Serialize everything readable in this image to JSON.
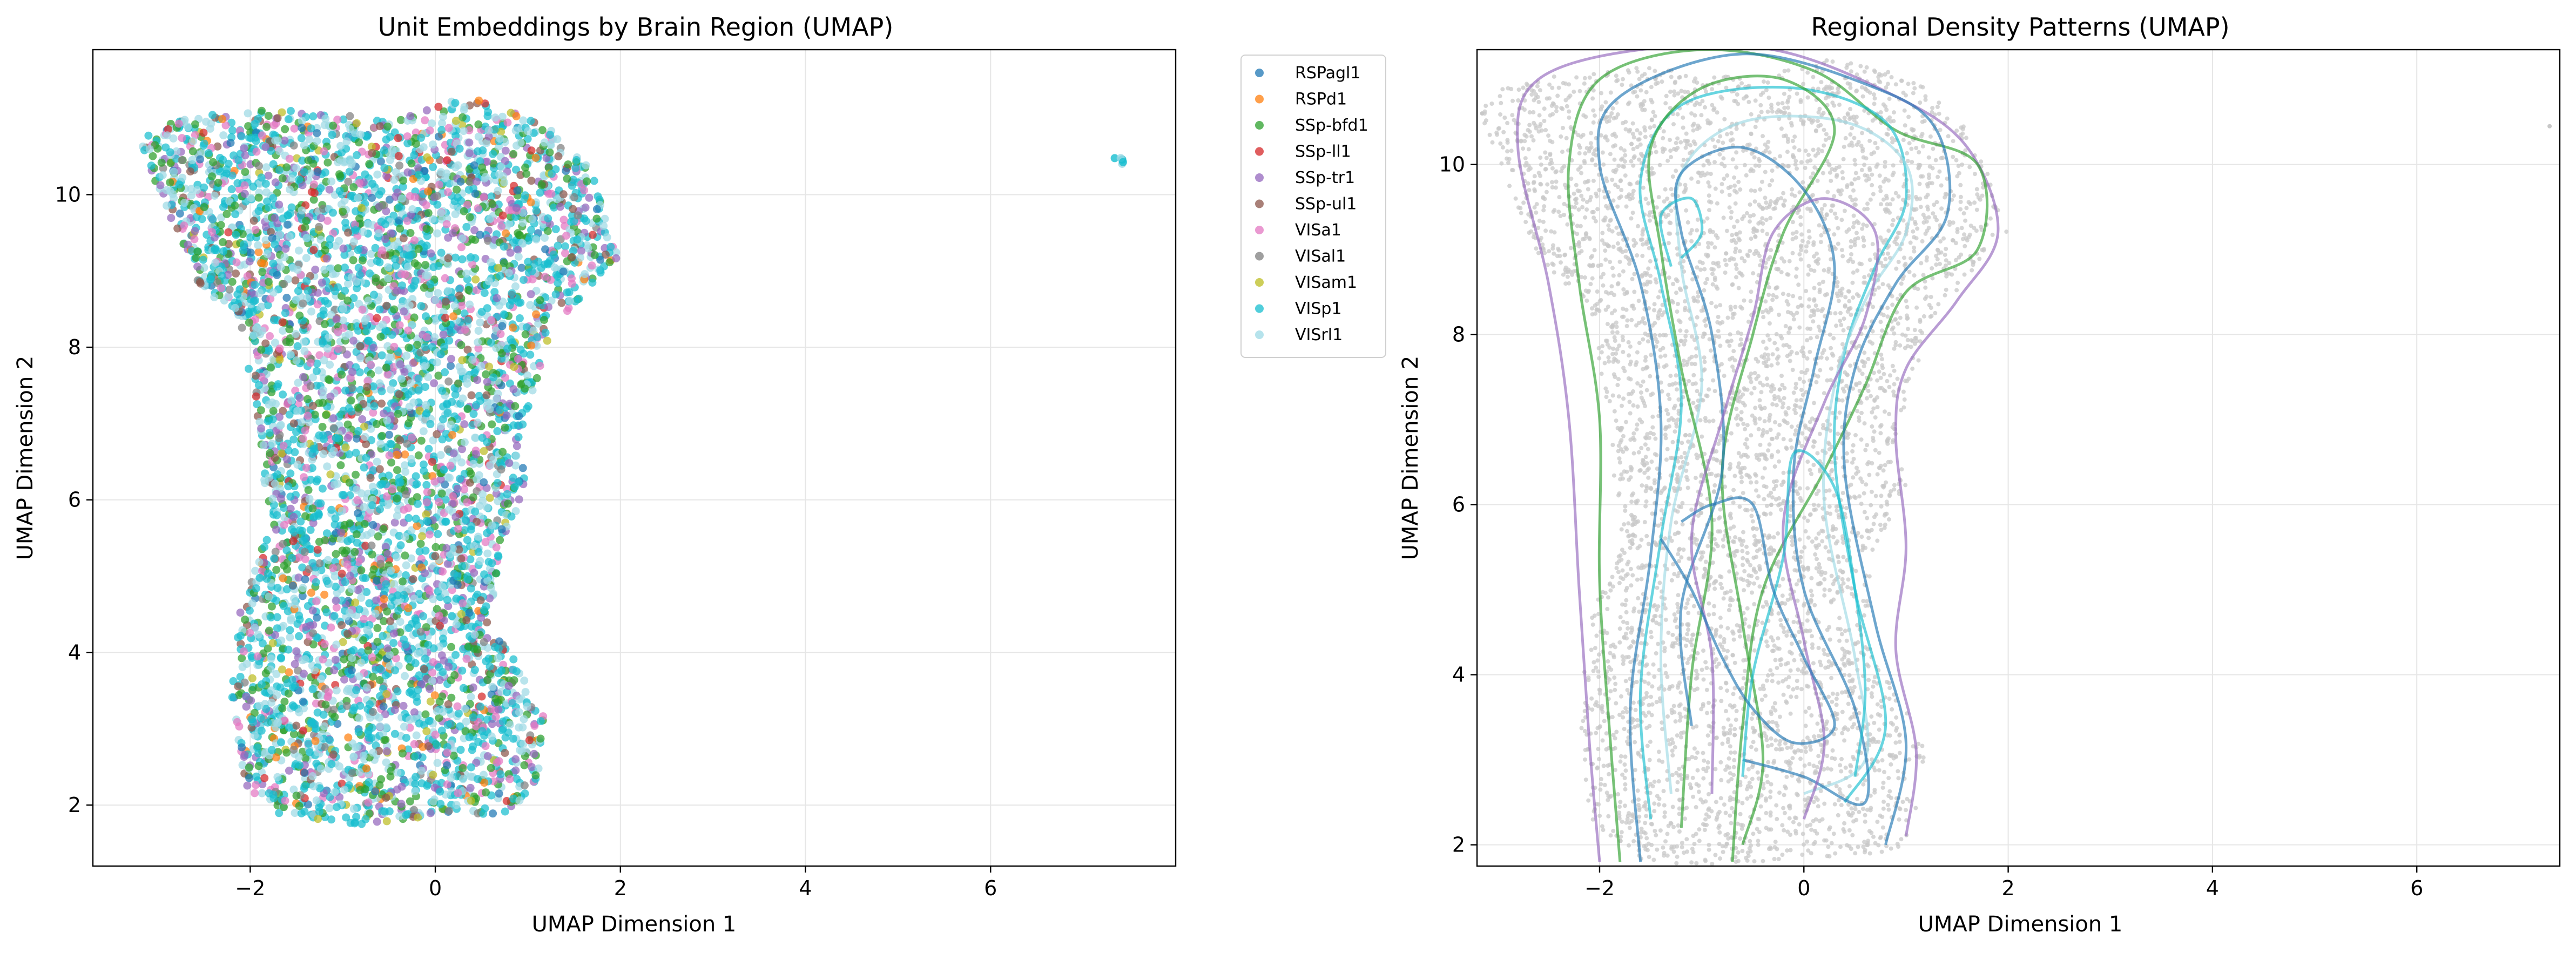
{
  "chart_data": [
    {
      "type": "scatter",
      "title": "Unit Embeddings by Brain Region (UMAP)",
      "xlabel": "UMAP Dimension 1",
      "ylabel": "UMAP Dimension 2",
      "xlim": [
        -3.7,
        8.0
      ],
      "ylim": [
        1.2,
        11.9
      ],
      "xticks": [
        -2,
        0,
        2,
        4,
        6
      ],
      "yticks": [
        2,
        4,
        6,
        8,
        10
      ],
      "grid": true,
      "legend_position": "outside-right",
      "series": [
        {
          "name": "RSPagl1",
          "color": "#1f77b4"
        },
        {
          "name": "RSPd1",
          "color": "#ff7f0e"
        },
        {
          "name": "SSp-bfd1",
          "color": "#2ca02c"
        },
        {
          "name": "SSp-ll1",
          "color": "#d62728"
        },
        {
          "name": "SSp-tr1",
          "color": "#9467bd"
        },
        {
          "name": "SSp-ul1",
          "color": "#8c564b"
        },
        {
          "name": "VISa1",
          "color": "#e377c2"
        },
        {
          "name": "VISal1",
          "color": "#7f7f7f"
        },
        {
          "name": "VISam1",
          "color": "#bcbd22"
        },
        {
          "name": "VISp1",
          "color": "#17becf"
        },
        {
          "name": "VISrl1",
          "color": "#9edae5"
        }
      ],
      "cloud_outline": [
        [
          -2.8,
          11.0
        ],
        [
          -1.6,
          11.15
        ],
        [
          -0.5,
          11.0
        ],
        [
          0.4,
          11.3
        ],
        [
          1.2,
          10.9
        ],
        [
          1.7,
          10.3
        ],
        [
          2.0,
          9.2
        ],
        [
          1.6,
          8.7
        ],
        [
          1.2,
          8.0
        ],
        [
          0.9,
          6.8
        ],
        [
          1.0,
          6.2
        ],
        [
          0.7,
          5.4
        ],
        [
          0.6,
          4.4
        ],
        [
          0.9,
          3.8
        ],
        [
          1.2,
          3.1
        ],
        [
          1.1,
          2.3
        ],
        [
          0.9,
          1.9
        ],
        [
          0.0,
          1.85
        ],
        [
          -0.8,
          1.75
        ],
        [
          -1.6,
          1.8
        ],
        [
          -2.1,
          2.3
        ],
        [
          -2.2,
          3.5
        ],
        [
          -2.1,
          4.6
        ],
        [
          -1.8,
          5.6
        ],
        [
          -1.9,
          6.8
        ],
        [
          -2.0,
          7.6
        ],
        [
          -2.1,
          8.3
        ],
        [
          -2.6,
          8.9
        ],
        [
          -2.9,
          9.8
        ],
        [
          -3.2,
          10.7
        ]
      ],
      "outlier_cluster": [
        7.4,
        10.45
      ]
    },
    {
      "type": "density-contour",
      "title": "Regional Density Patterns (UMAP)",
      "xlabel": "UMAP Dimension 1",
      "ylabel": "UMAP Dimension 2",
      "xlim": [
        -3.2,
        7.4
      ],
      "ylim": [
        1.75,
        11.35
      ],
      "xticks": [
        -2,
        0,
        2,
        4,
        6
      ],
      "yticks": [
        2,
        4,
        6,
        8,
        10
      ],
      "grid": true,
      "background_points_color": "#c8c8c8",
      "contours": [
        {
          "color": "#9467bd",
          "points": [
            [
              -2.0,
              1.8
            ],
            [
              -2.1,
              3.2
            ],
            [
              -2.2,
              5.0
            ],
            [
              -2.3,
              7.0
            ],
            [
              -2.5,
              8.6
            ],
            [
              -2.8,
              10.2
            ],
            [
              -2.6,
              11.0
            ],
            [
              -1.6,
              11.35
            ],
            [
              -0.3,
              11.35
            ],
            [
              0.9,
              10.8
            ],
            [
              1.6,
              10.2
            ],
            [
              1.9,
              9.2
            ],
            [
              1.5,
              8.4
            ],
            [
              1.0,
              7.6
            ],
            [
              0.9,
              6.8
            ],
            [
              1.0,
              5.5
            ],
            [
              0.9,
              4.3
            ],
            [
              1.1,
              3.1
            ],
            [
              1.0,
              2.1
            ]
          ]
        },
        {
          "color": "#2ca02c",
          "points": [
            [
              -1.8,
              1.8
            ],
            [
              -1.9,
              3.3
            ],
            [
              -2.0,
              5.1
            ],
            [
              -2.0,
              7.0
            ],
            [
              -2.2,
              8.6
            ],
            [
              -2.3,
              10.0
            ],
            [
              -2.0,
              11.0
            ],
            [
              -1.0,
              11.35
            ],
            [
              0.1,
              11.1
            ],
            [
              0.9,
              10.4
            ],
            [
              1.7,
              10.0
            ],
            [
              1.7,
              9.0
            ],
            [
              1.0,
              8.5
            ],
            [
              0.6,
              7.4
            ],
            [
              0.2,
              6.4
            ],
            [
              -0.4,
              5.0
            ],
            [
              -0.6,
              3.4
            ],
            [
              -0.7,
              1.8
            ]
          ]
        },
        {
          "color": "#1f77b4",
          "points": [
            [
              -1.6,
              1.8
            ],
            [
              -1.7,
              3.6
            ],
            [
              -1.5,
              5.4
            ],
            [
              -1.4,
              7.0
            ],
            [
              -1.6,
              8.6
            ],
            [
              -2.0,
              10.0
            ],
            [
              -1.8,
              10.8
            ],
            [
              -0.6,
              11.3
            ],
            [
              0.7,
              10.9
            ],
            [
              1.3,
              10.4
            ],
            [
              1.4,
              9.4
            ],
            [
              0.9,
              8.6
            ],
            [
              0.5,
              7.6
            ],
            [
              0.4,
              6.4
            ],
            [
              0.7,
              4.6
            ],
            [
              1.0,
              3.2
            ],
            [
              0.8,
              2.0
            ]
          ]
        },
        {
          "color": "#17becf",
          "points": [
            [
              -1.5,
              2.3
            ],
            [
              -1.6,
              3.8
            ],
            [
              -1.4,
              5.6
            ],
            [
              -1.2,
              7.2
            ],
            [
              -1.4,
              8.6
            ],
            [
              -1.6,
              9.8
            ],
            [
              -1.2,
              10.7
            ],
            [
              -0.1,
              10.9
            ],
            [
              0.8,
              10.5
            ],
            [
              1.0,
              9.6
            ],
            [
              0.7,
              8.8
            ],
            [
              0.4,
              7.8
            ],
            [
              0.3,
              6.6
            ],
            [
              0.5,
              5.0
            ],
            [
              0.8,
              3.4
            ],
            [
              0.4,
              2.5
            ]
          ]
        },
        {
          "color": "#9edae5",
          "points": [
            [
              -1.3,
              2.6
            ],
            [
              -1.4,
              4.2
            ],
            [
              -1.3,
              5.8
            ],
            [
              -1.0,
              7.4
            ],
            [
              -1.2,
              8.8
            ],
            [
              -1.2,
              9.9
            ],
            [
              -0.6,
              10.5
            ],
            [
              0.4,
              10.5
            ],
            [
              1.0,
              10.0
            ],
            [
              1.0,
              9.2
            ],
            [
              0.6,
              8.4
            ],
            [
              0.3,
              7.4
            ],
            [
              0.2,
              6.0
            ],
            [
              0.5,
              4.2
            ],
            [
              0.6,
              3.0
            ],
            [
              0.0,
              2.6
            ]
          ]
        },
        {
          "color": "#2ca02c",
          "points": [
            [
              -1.2,
              2.2
            ],
            [
              -1.1,
              4.0
            ],
            [
              -0.9,
              5.8
            ],
            [
              -1.2,
              7.6
            ],
            [
              -1.4,
              9.0
            ],
            [
              -1.5,
              10.2
            ],
            [
              -1.0,
              10.9
            ],
            [
              -0.2,
              11.0
            ],
            [
              0.3,
              10.4
            ],
            [
              -0.2,
              9.2
            ],
            [
              -0.5,
              8.0
            ],
            [
              -0.8,
              6.4
            ],
            [
              -0.6,
              4.6
            ],
            [
              -0.4,
              3.0
            ],
            [
              -0.6,
              2.0
            ]
          ]
        },
        {
          "color": "#1f77b4",
          "points": [
            [
              -1.1,
              3.4
            ],
            [
              -1.2,
              4.8
            ],
            [
              -0.8,
              6.4
            ],
            [
              -0.9,
              8.0
            ],
            [
              -1.2,
              9.2
            ],
            [
              -1.2,
              9.9
            ],
            [
              -0.6,
              10.2
            ],
            [
              0.0,
              9.7
            ],
            [
              0.3,
              8.8
            ],
            [
              0.1,
              7.6
            ],
            [
              -0.1,
              6.4
            ],
            [
              0.0,
              5.0
            ],
            [
              0.5,
              3.6
            ],
            [
              0.6,
              2.5
            ],
            [
              0.0,
              2.8
            ],
            [
              -0.6,
              3.0
            ]
          ]
        },
        {
          "color": "#9467bd",
          "points": [
            [
              -0.9,
              2.6
            ],
            [
              -0.9,
              4.2
            ],
            [
              -1.1,
              5.6
            ],
            [
              -0.8,
              7.0
            ],
            [
              -0.5,
              8.2
            ],
            [
              -0.3,
              9.2
            ],
            [
              0.2,
              9.6
            ],
            [
              0.7,
              9.2
            ],
            [
              0.6,
              8.2
            ],
            [
              0.2,
              7.2
            ],
            [
              -0.2,
              5.8
            ],
            [
              0.0,
              4.4
            ],
            [
              0.2,
              3.2
            ],
            [
              0.0,
              2.3
            ]
          ]
        },
        {
          "color": "#17becf",
          "points": [
            [
              -0.6,
              2.8
            ],
            [
              -0.5,
              4.0
            ],
            [
              -0.2,
              5.4
            ],
            [
              -0.1,
              6.6
            ],
            [
              0.3,
              6.2
            ],
            [
              0.5,
              5.0
            ],
            [
              0.6,
              3.8
            ],
            [
              0.5,
              2.8
            ]
          ]
        },
        {
          "color": "#1f77b4",
          "points": [
            [
              -1.4,
              5.6
            ],
            [
              -1.1,
              5.0
            ],
            [
              -0.8,
              4.2
            ],
            [
              -0.5,
              3.6
            ],
            [
              -0.1,
              3.2
            ],
            [
              0.3,
              3.4
            ],
            [
              0.0,
              4.2
            ],
            [
              -0.3,
              5.0
            ],
            [
              -0.5,
              6.0
            ],
            [
              -0.9,
              6.0
            ],
            [
              -1.2,
              5.8
            ]
          ]
        },
        {
          "color": "#17becf",
          "points": [
            [
              -1.3,
              8.8
            ],
            [
              -1.4,
              9.4
            ],
            [
              -1.1,
              9.6
            ],
            [
              -1.0,
              9.2
            ],
            [
              -1.2,
              8.9
            ]
          ]
        }
      ]
    }
  ]
}
